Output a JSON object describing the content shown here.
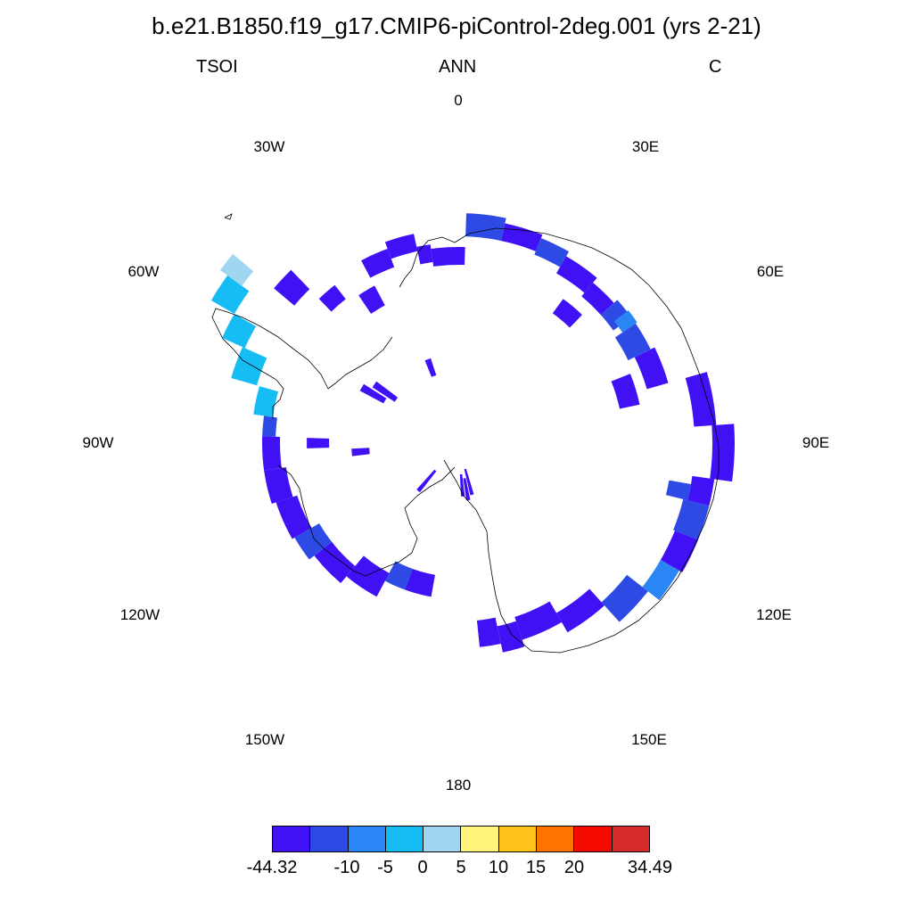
{
  "title": "b.e21.B1850.f19_g17.CMIP6-piControl-2deg.001 (yrs 2-21)",
  "left_string": "TSOI",
  "center_string": "ANN",
  "right_string": "C",
  "longitude_labels": [
    "0",
    "30E",
    "60E",
    "90E",
    "120E",
    "150E",
    "180",
    "150W",
    "120W",
    "90W",
    "60W",
    "30W"
  ],
  "colorbar": {
    "colors": [
      "#4011f5",
      "#2d4be4",
      "#2a85f5",
      "#16bdf5",
      "#a1d6f0",
      "#fff57c",
      "#ffc31a",
      "#ff7400",
      "#f50a00",
      "#d62b2b"
    ],
    "tick_labels": [
      "-44.32",
      "-10",
      "-5",
      "0",
      "5",
      "10",
      "15",
      "20",
      "34.49"
    ]
  }
}
